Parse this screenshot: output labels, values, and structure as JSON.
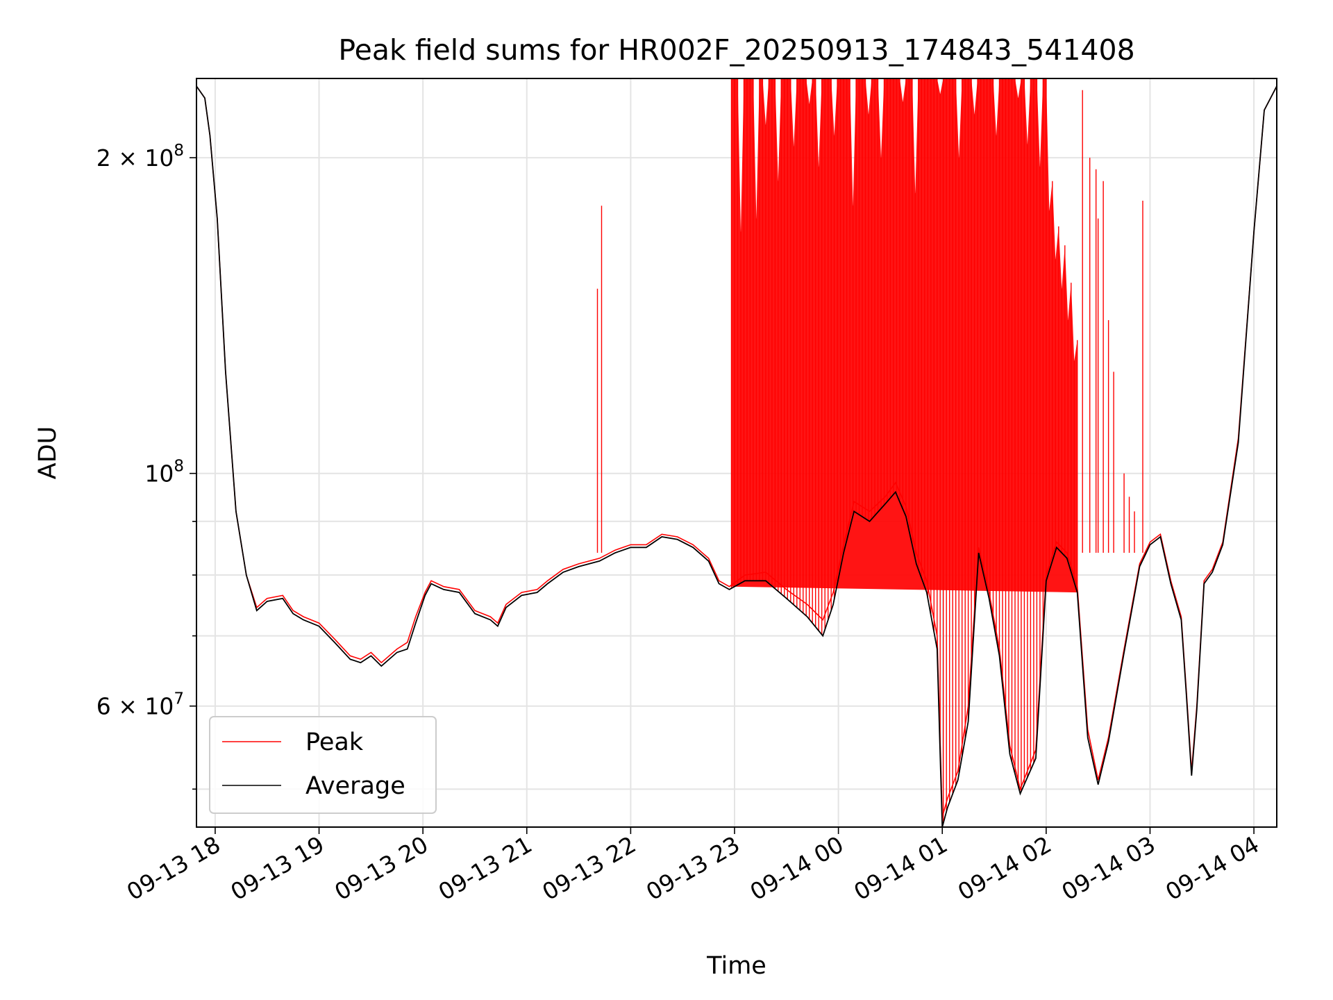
{
  "chart_data": {
    "type": "line",
    "title": "Peak field sums for HR002F_20250913_174843_541408",
    "xlabel": "Time",
    "ylabel": "ADU",
    "x_unit": "hours of day, 2025-09-13 (values above 24 fall on 09-14)",
    "x_range": [
      17.82,
      28.22
    ],
    "y_scale": "log",
    "y_range": [
      46000000,
      238000000
    ],
    "grid": true,
    "legend_position": "lower-left",
    "x_ticks": [
      {
        "value": 18,
        "label": "09-13 18"
      },
      {
        "value": 19,
        "label": "09-13 19"
      },
      {
        "value": 20,
        "label": "09-13 20"
      },
      {
        "value": 21,
        "label": "09-13 21"
      },
      {
        "value": 22,
        "label": "09-13 22"
      },
      {
        "value": 23,
        "label": "09-13 23"
      },
      {
        "value": 24,
        "label": "09-14 00"
      },
      {
        "value": 25,
        "label": "09-14 01"
      },
      {
        "value": 26,
        "label": "09-14 02"
      },
      {
        "value": 27,
        "label": "09-14 03"
      },
      {
        "value": 28,
        "label": "09-14 04"
      }
    ],
    "y_major_ticks": [
      {
        "value": 60000000,
        "mantissa": "6",
        "exponent": "7"
      },
      {
        "value": 100000000,
        "mantissa": "",
        "exponent": "8"
      },
      {
        "value": 200000000,
        "mantissa": "2",
        "exponent": "8"
      }
    ],
    "y_minor_ticks": [
      50000000,
      70000000,
      80000000,
      90000000
    ],
    "series": [
      {
        "name": "Peak",
        "color": "#ff0000",
        "points": [
          [
            17.82,
            234000000
          ],
          [
            17.9,
            228000000
          ],
          [
            17.95,
            210000000
          ],
          [
            18.02,
            175000000
          ],
          [
            18.1,
            125000000
          ],
          [
            18.2,
            92000000
          ],
          [
            18.3,
            80000000
          ],
          [
            18.4,
            74500000
          ],
          [
            18.5,
            76000000
          ],
          [
            18.65,
            76500000
          ],
          [
            18.75,
            74000000
          ],
          [
            18.85,
            73000000
          ],
          [
            19.0,
            72000000
          ],
          [
            19.15,
            69500000
          ],
          [
            19.3,
            67000000
          ],
          [
            19.4,
            66500000
          ],
          [
            19.5,
            67500000
          ],
          [
            19.6,
            66000000
          ],
          [
            19.75,
            68000000
          ],
          [
            19.85,
            69000000
          ],
          [
            19.93,
            73000000
          ],
          [
            20.02,
            77000000
          ],
          [
            20.08,
            79000000
          ],
          [
            20.2,
            78000000
          ],
          [
            20.35,
            77500000
          ],
          [
            20.5,
            74000000
          ],
          [
            20.65,
            73000000
          ],
          [
            20.72,
            72000000
          ],
          [
            20.8,
            75000000
          ],
          [
            20.95,
            77000000
          ],
          [
            21.1,
            77500000
          ],
          [
            21.2,
            79000000
          ],
          [
            21.35,
            81000000
          ],
          [
            21.5,
            82000000
          ],
          [
            21.7,
            83000000
          ],
          [
            21.85,
            84500000
          ],
          [
            22.0,
            85500000
          ],
          [
            22.15,
            85500000
          ],
          [
            22.3,
            87500000
          ],
          [
            22.45,
            87000000
          ],
          [
            22.6,
            85500000
          ],
          [
            22.75,
            83000000
          ],
          [
            22.85,
            79000000
          ],
          [
            22.95,
            78000000
          ],
          [
            23.1,
            80000000
          ],
          [
            23.3,
            80500000
          ],
          [
            23.5,
            77500000
          ],
          [
            23.7,
            75000000
          ],
          [
            23.85,
            72500000
          ],
          [
            23.95,
            77000000
          ],
          [
            24.05,
            85500000
          ],
          [
            24.15,
            94000000
          ],
          [
            24.3,
            92000000
          ],
          [
            24.45,
            95000000
          ],
          [
            24.55,
            98000000
          ],
          [
            24.65,
            93000000
          ],
          [
            24.75,
            84000000
          ],
          [
            24.85,
            79000000
          ],
          [
            24.95,
            70000000
          ],
          [
            25.0,
            47000000
          ],
          [
            25.05,
            49000000
          ],
          [
            25.15,
            52000000
          ],
          [
            25.25,
            60000000
          ],
          [
            25.35,
            85000000
          ],
          [
            25.45,
            77000000
          ],
          [
            25.55,
            68000000
          ],
          [
            25.65,
            55000000
          ],
          [
            25.75,
            50000000
          ],
          [
            25.9,
            54500000
          ],
          [
            26.0,
            80000000
          ],
          [
            26.1,
            86000000
          ],
          [
            26.2,
            84000000
          ],
          [
            26.3,
            78000000
          ],
          [
            26.4,
            57000000
          ],
          [
            26.5,
            51000000
          ],
          [
            26.6,
            56000000
          ],
          [
            26.75,
            68000000
          ],
          [
            26.9,
            82000000
          ],
          [
            27.0,
            86000000
          ],
          [
            27.1,
            87500000
          ],
          [
            27.2,
            79000000
          ],
          [
            27.3,
            73000000
          ],
          [
            27.35,
            62000000
          ],
          [
            27.4,
            52000000
          ],
          [
            27.45,
            60000000
          ],
          [
            27.52,
            79000000
          ],
          [
            27.6,
            81000000
          ],
          [
            27.7,
            86000000
          ],
          [
            27.85,
            108000000
          ],
          [
            28.0,
            170000000
          ],
          [
            28.1,
            222000000
          ],
          [
            28.22,
            234000000
          ]
        ],
        "spike_band": {
          "start": 22.97,
          "end": 26.3,
          "top_value": 238000000,
          "x_values": [
            22.97,
            23.0,
            23.03,
            23.06,
            23.09,
            23.12,
            23.15,
            23.18,
            23.21,
            23.24,
            23.27,
            23.3,
            23.33,
            23.36,
            23.39,
            23.42,
            23.45,
            23.48,
            23.51,
            23.54,
            23.57,
            23.6,
            23.63,
            23.66,
            23.69,
            23.72,
            23.75,
            23.78,
            23.81,
            23.84,
            23.87,
            23.9,
            23.93,
            23.96,
            23.99,
            24.02,
            24.05,
            24.08,
            24.11,
            24.14,
            24.17,
            24.2,
            24.23,
            24.26,
            24.29,
            24.32,
            24.35,
            24.38,
            24.41,
            24.44,
            24.47,
            24.5,
            24.53,
            24.56,
            24.59,
            24.62,
            24.65,
            24.68,
            24.71,
            24.74,
            24.77,
            24.8,
            24.83,
            24.86,
            24.89,
            24.92,
            24.95,
            24.98,
            25.01,
            25.04,
            25.07,
            25.1,
            25.13,
            25.16,
            25.19,
            25.22,
            25.25,
            25.28,
            25.31,
            25.34,
            25.37,
            25.4,
            25.43,
            25.46,
            25.49,
            25.52,
            25.55,
            25.58,
            25.61,
            25.64,
            25.67,
            25.7,
            25.73,
            25.76,
            25.79,
            25.82,
            25.85,
            25.88,
            25.91,
            25.94,
            25.97,
            26.0,
            26.03,
            26.06,
            26.09,
            26.12,
            26.15,
            26.18,
            26.21,
            26.24,
            26.27,
            26.3
          ],
          "peak_values": [
            238000000,
            238000000,
            238000000,
            170000000,
            238000000,
            238000000,
            238000000,
            238000000,
            175000000,
            238000000,
            238000000,
            215000000,
            238000000,
            238000000,
            238000000,
            190000000,
            238000000,
            238000000,
            238000000,
            238000000,
            205000000,
            238000000,
            238000000,
            238000000,
            238000000,
            225000000,
            238000000,
            238000000,
            196000000,
            238000000,
            238000000,
            238000000,
            238000000,
            210000000,
            238000000,
            238000000,
            238000000,
            238000000,
            238000000,
            180000000,
            238000000,
            238000000,
            238000000,
            238000000,
            220000000,
            238000000,
            238000000,
            238000000,
            200000000,
            238000000,
            238000000,
            238000000,
            238000000,
            238000000,
            238000000,
            226000000,
            238000000,
            238000000,
            238000000,
            185000000,
            238000000,
            238000000,
            238000000,
            238000000,
            238000000,
            238000000,
            238000000,
            230000000,
            238000000,
            238000000,
            238000000,
            238000000,
            238000000,
            200000000,
            238000000,
            238000000,
            238000000,
            238000000,
            220000000,
            238000000,
            238000000,
            238000000,
            238000000,
            238000000,
            238000000,
            210000000,
            238000000,
            238000000,
            238000000,
            238000000,
            238000000,
            238000000,
            228000000,
            238000000,
            238000000,
            206000000,
            238000000,
            238000000,
            238000000,
            196000000,
            238000000,
            238000000,
            178000000,
            190000000,
            160000000,
            172000000,
            150000000,
            165000000,
            140000000,
            152000000,
            128000000,
            134000000
          ]
        },
        "extra_spikes": [
          [
            19.94,
            80000000
          ],
          [
            21.68,
            150000000
          ],
          [
            21.72,
            180000000
          ],
          [
            26.35,
            232000000
          ],
          [
            26.42,
            200000000
          ],
          [
            26.48,
            195000000
          ],
          [
            26.5,
            175000000
          ],
          [
            26.55,
            190000000
          ],
          [
            26.6,
            140000000
          ],
          [
            26.65,
            125000000
          ],
          [
            26.75,
            100000000
          ],
          [
            26.8,
            95000000
          ],
          [
            26.85,
            92000000
          ],
          [
            26.93,
            182000000
          ]
        ]
      },
      {
        "name": "Average",
        "color": "#000000",
        "points": [
          [
            17.82,
            234000000
          ],
          [
            17.9,
            228000000
          ],
          [
            17.95,
            210000000
          ],
          [
            18.02,
            175000000
          ],
          [
            18.1,
            125000000
          ],
          [
            18.2,
            92000000
          ],
          [
            18.3,
            80000000
          ],
          [
            18.4,
            74000000
          ],
          [
            18.5,
            75500000
          ],
          [
            18.65,
            76000000
          ],
          [
            18.75,
            73500000
          ],
          [
            18.85,
            72500000
          ],
          [
            19.0,
            71500000
          ],
          [
            19.15,
            69000000
          ],
          [
            19.3,
            66500000
          ],
          [
            19.4,
            66000000
          ],
          [
            19.5,
            67000000
          ],
          [
            19.6,
            65500000
          ],
          [
            19.75,
            67500000
          ],
          [
            19.85,
            68000000
          ],
          [
            19.93,
            72000000
          ],
          [
            20.02,
            76500000
          ],
          [
            20.08,
            78500000
          ],
          [
            20.2,
            77500000
          ],
          [
            20.35,
            77000000
          ],
          [
            20.5,
            73500000
          ],
          [
            20.65,
            72500000
          ],
          [
            20.72,
            71500000
          ],
          [
            20.8,
            74500000
          ],
          [
            20.95,
            76500000
          ],
          [
            21.1,
            77000000
          ],
          [
            21.2,
            78500000
          ],
          [
            21.35,
            80500000
          ],
          [
            21.5,
            81500000
          ],
          [
            21.7,
            82500000
          ],
          [
            21.85,
            84000000
          ],
          [
            22.0,
            85000000
          ],
          [
            22.15,
            85000000
          ],
          [
            22.3,
            87000000
          ],
          [
            22.45,
            86500000
          ],
          [
            22.6,
            85000000
          ],
          [
            22.75,
            82500000
          ],
          [
            22.85,
            78500000
          ],
          [
            22.95,
            77500000
          ],
          [
            23.1,
            79000000
          ],
          [
            23.3,
            79000000
          ],
          [
            23.5,
            76000000
          ],
          [
            23.7,
            73000000
          ],
          [
            23.85,
            70000000
          ],
          [
            23.95,
            75000000
          ],
          [
            24.05,
            84000000
          ],
          [
            24.15,
            92000000
          ],
          [
            24.3,
            90000000
          ],
          [
            24.45,
            93500000
          ],
          [
            24.55,
            96000000
          ],
          [
            24.65,
            91000000
          ],
          [
            24.75,
            82000000
          ],
          [
            24.85,
            77000000
          ],
          [
            24.95,
            68000000
          ],
          [
            25.0,
            46000000
          ],
          [
            25.05,
            48000000
          ],
          [
            25.15,
            51000000
          ],
          [
            25.25,
            58000000
          ],
          [
            25.35,
            84000000
          ],
          [
            25.45,
            76000000
          ],
          [
            25.55,
            67000000
          ],
          [
            25.65,
            54000000
          ],
          [
            25.75,
            49500000
          ],
          [
            25.9,
            53500000
          ],
          [
            26.0,
            79000000
          ],
          [
            26.1,
            85000000
          ],
          [
            26.2,
            83000000
          ],
          [
            26.3,
            77000000
          ],
          [
            26.4,
            56000000
          ],
          [
            26.5,
            50500000
          ],
          [
            26.6,
            55500000
          ],
          [
            26.75,
            67500000
          ],
          [
            26.9,
            81500000
          ],
          [
            27.0,
            85500000
          ],
          [
            27.1,
            87000000
          ],
          [
            27.2,
            78500000
          ],
          [
            27.3,
            72500000
          ],
          [
            27.35,
            61500000
          ],
          [
            27.4,
            51500000
          ],
          [
            27.45,
            59500000
          ],
          [
            27.52,
            78500000
          ],
          [
            27.6,
            80500000
          ],
          [
            27.7,
            85500000
          ],
          [
            27.85,
            107000000
          ],
          [
            28.0,
            170000000
          ],
          [
            28.1,
            222000000
          ],
          [
            28.22,
            234000000
          ]
        ]
      }
    ]
  }
}
